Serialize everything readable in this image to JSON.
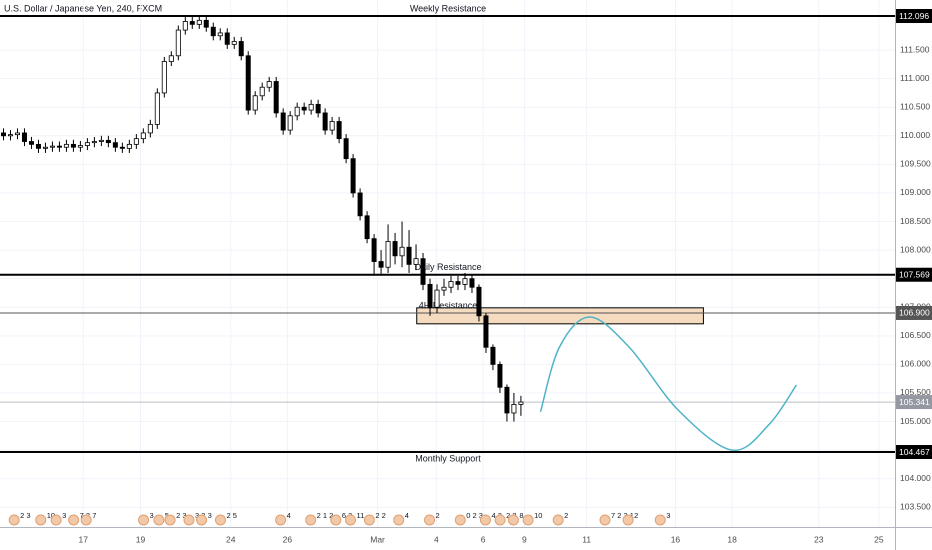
{
  "chart_data": {
    "type": "candlestick",
    "title": "U.S. Dollar / Japanese Yen, 240, FXCM",
    "xlim": [
      0,
      128
    ],
    "ylim": [
      103.155,
      112.376
    ],
    "xticks": [
      {
        "value": 11.9,
        "label": "17"
      },
      {
        "value": 20.1,
        "label": "19"
      },
      {
        "value": 33,
        "label": "24"
      },
      {
        "value": 41.1,
        "label": "26"
      },
      {
        "value": 54,
        "label": "Mar"
      },
      {
        "value": 62.4,
        "label": "4"
      },
      {
        "value": 69.1,
        "label": "6"
      },
      {
        "value": 75,
        "label": "9"
      },
      {
        "value": 83.9,
        "label": "11"
      },
      {
        "value": 96.6,
        "label": "16"
      },
      {
        "value": 104.7,
        "label": "18"
      },
      {
        "value": 117.1,
        "label": "23"
      },
      {
        "value": 125.7,
        "label": "25"
      }
    ],
    "yticks": [
      {
        "value": 103.5,
        "label": "103.500"
      },
      {
        "value": 104,
        "label": "104.000"
      },
      {
        "value": 104.5,
        "label": "104.500"
      },
      {
        "value": 105,
        "label": "105.000"
      },
      {
        "value": 105.5,
        "label": "105.500"
      },
      {
        "value": 106,
        "label": "106.000"
      },
      {
        "value": 106.5,
        "label": "106.500"
      },
      {
        "value": 107,
        "label": "107.000"
      },
      {
        "value": 107.5,
        "label": "107.500"
      },
      {
        "value": 108,
        "label": "108.000"
      },
      {
        "value": 108.5,
        "label": "108.500"
      },
      {
        "value": 109,
        "label": "109.000"
      },
      {
        "value": 109.5,
        "label": "109.500"
      },
      {
        "value": 110,
        "label": "110.000"
      },
      {
        "value": 110.5,
        "label": "110.500"
      },
      {
        "value": 111,
        "label": "111.000"
      },
      {
        "value": 111.5,
        "label": "111.500"
      }
    ],
    "grid": true,
    "up_color": "#ffffff",
    "down_color": "#000000",
    "open": [
      110.05,
      110.0,
      110.02,
      110.05,
      109.9,
      109.85,
      109.78,
      109.8,
      109.82,
      109.8,
      109.85,
      109.8,
      109.83,
      109.88,
      109.9,
      109.92,
      109.88,
      109.8,
      109.78,
      109.85,
      109.95,
      110.05,
      110.2,
      110.75,
      111.3,
      111.4,
      111.85,
      112.0,
      111.95,
      112.02,
      111.9,
      111.75,
      111.8,
      111.6,
      111.65,
      111.4,
      110.45,
      110.7,
      110.85,
      110.95,
      110.4,
      110.1,
      110.35,
      110.5,
      110.45,
      110.55,
      110.4,
      110.1,
      110.25,
      109.95,
      109.6,
      109.0,
      108.6,
      108.2,
      107.8,
      107.7,
      108.15,
      107.9,
      108.05,
      107.75,
      107.85,
      107.4,
      107.0,
      107.3,
      107.35,
      107.45,
      107.4,
      107.5,
      107.35,
      106.85,
      106.3,
      106.0,
      105.6,
      105.15,
      105.3
    ],
    "high": [
      110.13,
      110.1,
      110.13,
      110.13,
      109.98,
      109.93,
      109.88,
      109.9,
      109.9,
      109.93,
      109.93,
      109.91,
      109.96,
      109.98,
      110.0,
      110.0,
      109.96,
      109.88,
      109.93,
      110.03,
      110.13,
      110.28,
      110.83,
      111.38,
      111.48,
      111.93,
      112.1,
      112.1,
      112.1,
      112.1,
      111.98,
      111.88,
      111.88,
      111.73,
      111.73,
      111.48,
      110.78,
      110.93,
      111.03,
      111.03,
      110.48,
      110.43,
      110.58,
      110.58,
      110.63,
      110.63,
      110.48,
      110.33,
      110.33,
      110.03,
      109.68,
      109.08,
      108.68,
      108.28,
      108.0,
      108.45,
      108.3,
      108.5,
      108.35,
      108.1,
      107.95,
      107.5,
      107.4,
      107.5,
      107.55,
      107.55,
      107.6,
      107.58,
      107.4,
      106.9,
      106.35,
      106.05,
      105.65,
      105.5,
      105.45
    ],
    "low": [
      109.92,
      109.92,
      109.94,
      109.82,
      109.77,
      109.7,
      109.7,
      109.72,
      109.72,
      109.72,
      109.72,
      109.72,
      109.75,
      109.8,
      109.82,
      109.8,
      109.72,
      109.7,
      109.7,
      109.77,
      109.87,
      109.97,
      110.12,
      110.67,
      111.22,
      111.32,
      111.77,
      111.87,
      111.87,
      111.82,
      111.67,
      111.67,
      111.52,
      111.52,
      111.32,
      110.37,
      110.37,
      110.62,
      110.77,
      110.32,
      110.02,
      110.02,
      110.27,
      110.37,
      110.37,
      110.32,
      110.02,
      110.02,
      109.87,
      109.52,
      108.92,
      108.52,
      108.12,
      107.55,
      107.55,
      107.6,
      107.75,
      107.7,
      107.6,
      107.65,
      107.3,
      106.85,
      106.9,
      107.2,
      107.25,
      107.3,
      107.3,
      107.25,
      106.75,
      106.2,
      105.9,
      105.5,
      105.0,
      105.0,
      105.1
    ],
    "close": [
      110.0,
      110.02,
      110.05,
      109.9,
      109.85,
      109.78,
      109.8,
      109.82,
      109.8,
      109.85,
      109.8,
      109.83,
      109.88,
      109.9,
      109.92,
      109.88,
      109.8,
      109.78,
      109.85,
      109.95,
      110.05,
      110.2,
      110.75,
      111.3,
      111.4,
      111.85,
      112.0,
      111.95,
      112.02,
      111.9,
      111.75,
      111.8,
      111.6,
      111.65,
      111.4,
      110.45,
      110.7,
      110.85,
      110.95,
      110.4,
      110.1,
      110.35,
      110.5,
      110.45,
      110.55,
      110.4,
      110.1,
      110.25,
      109.95,
      109.6,
      109.0,
      108.6,
      108.2,
      107.8,
      107.7,
      108.15,
      107.9,
      108.05,
      107.75,
      107.85,
      107.4,
      107.0,
      107.3,
      107.35,
      107.45,
      107.4,
      107.5,
      107.35,
      106.85,
      106.3,
      106.0,
      105.6,
      105.15,
      105.3,
      105.341
    ],
    "levels": [
      {
        "name": "Weekly Resistance",
        "value": 112.096,
        "color": "#000000"
      },
      {
        "name": "Daily Resistance",
        "value": 107.569,
        "color": "#000000"
      },
      {
        "name": "4H Resistance",
        "value": {
          "value": 106.9,
          "label": "106.900"
        },
        "color": "#555555"
      },
      {
        "name": "Monthly Support",
        "value": 104.467,
        "color": "#000000"
      }
    ],
    "last_price": {
      "value": 105.341,
      "color": "#9598a1"
    },
    "zone": {
      "top": 106.99,
      "bottom": 106.71,
      "x": [
        59.6,
        100.6
      ],
      "color": "#f5dcc0"
    },
    "projection": {
      "color": "#4fb3c8",
      "x": [
        77.3,
        80,
        84.3,
        90,
        97,
        104.7,
        110,
        113.9
      ],
      "y": [
        105.17,
        106.3,
        106.83,
        106.3,
        105.2,
        104.5,
        104.95,
        105.64
      ]
    },
    "events": [
      {
        "x": 2.6,
        "label": "2 3"
      },
      {
        "x": 6.4,
        "label": "10"
      },
      {
        "x": 8.6,
        "label": "3"
      },
      {
        "x": 11.1,
        "label": "7 3"
      },
      {
        "x": 12.9,
        "label": "7"
      },
      {
        "x": 21.1,
        "label": "3"
      },
      {
        "x": 23.3,
        "label": "5"
      },
      {
        "x": 24.9,
        "label": "2 3"
      },
      {
        "x": 27.6,
        "label": "3 3"
      },
      {
        "x": 29.4,
        "label": "3"
      },
      {
        "x": 32.1,
        "label": "2 5"
      },
      {
        "x": 40.7,
        "label": "4"
      },
      {
        "x": 45,
        "label": "2 1 2"
      },
      {
        "x": 48.6,
        "label": "6 3"
      },
      {
        "x": 50.7,
        "label": "11"
      },
      {
        "x": 53.4,
        "label": "2 2"
      },
      {
        "x": 57.6,
        "label": "4"
      },
      {
        "x": 62,
        "label": "2"
      },
      {
        "x": 66.4,
        "label": "0 2 3"
      },
      {
        "x": 70,
        "label": "4 3"
      },
      {
        "x": 72.1,
        "label": "2 2"
      },
      {
        "x": 74,
        "label": "8"
      },
      {
        "x": 76.1,
        "label": "10"
      },
      {
        "x": 80.4,
        "label": "2"
      },
      {
        "x": 87.1,
        "label": "7 2 3 1"
      },
      {
        "x": 90.4,
        "label": "2"
      },
      {
        "x": 95,
        "label": "3"
      }
    ]
  }
}
